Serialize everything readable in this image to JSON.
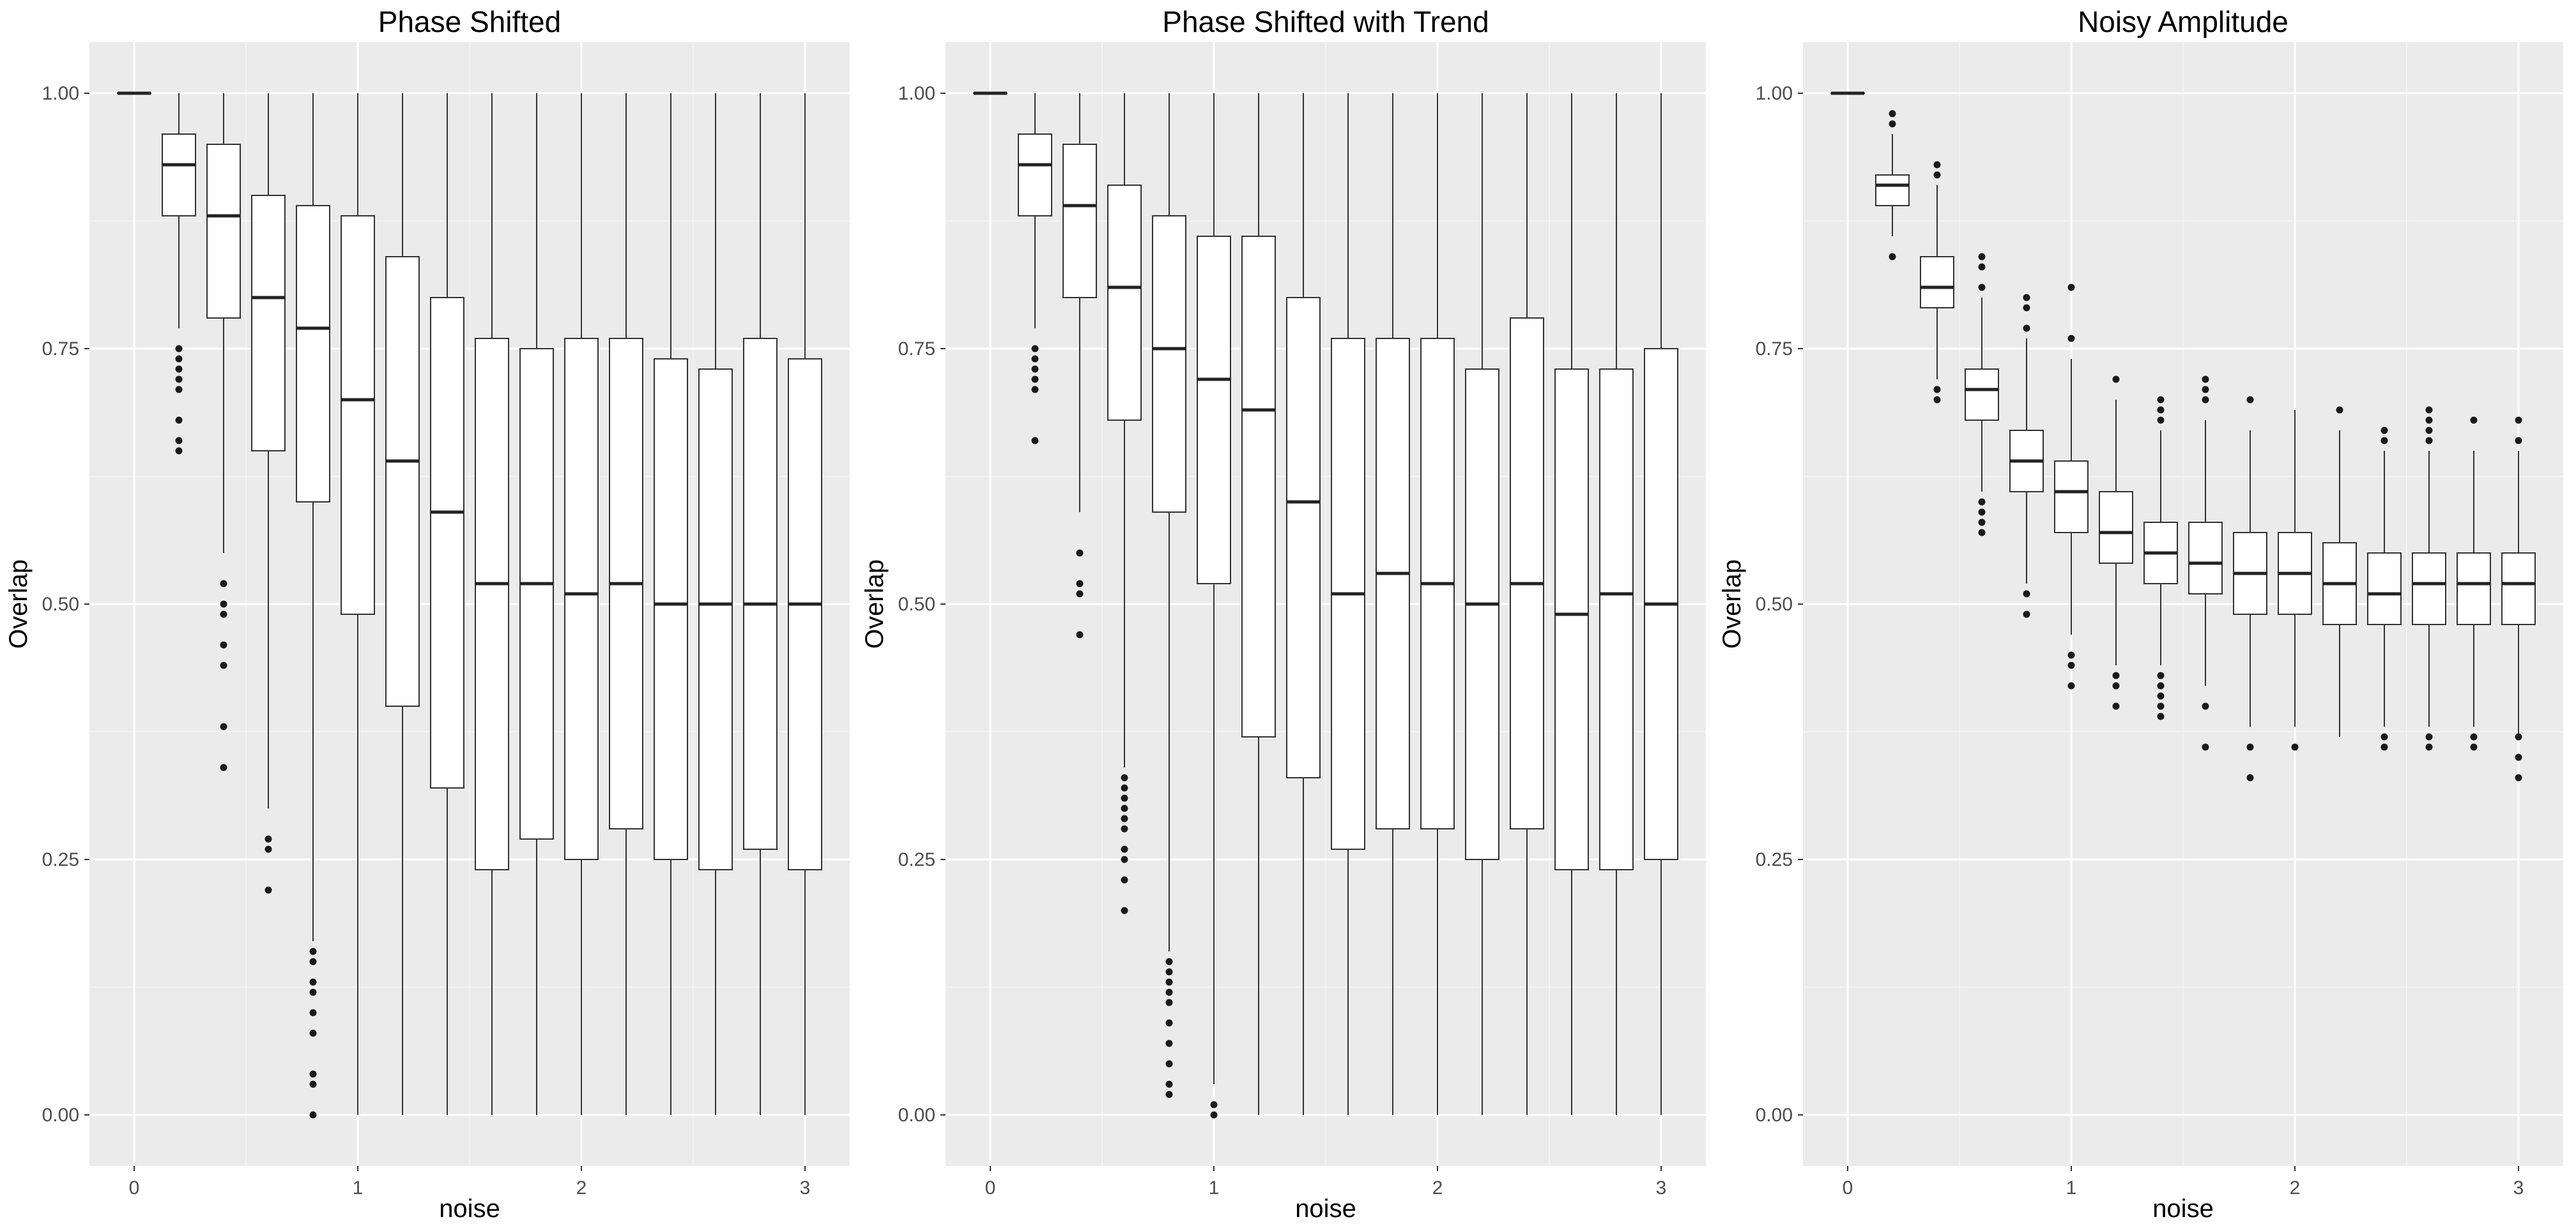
{
  "chart_data": [
    {
      "type": "boxplot",
      "title": "Phase Shifted",
      "xlabel": "noise",
      "ylabel": "Overlap",
      "ylim": [
        -0.05,
        1.05
      ],
      "xlim": [
        -0.2,
        3.2
      ],
      "yticks": [
        0.0,
        0.25,
        0.5,
        0.75,
        1.0
      ],
      "ytick_labels": [
        "0.00",
        "0.25",
        "0.50",
        "0.75",
        "1.00"
      ],
      "xticks": [
        0,
        1,
        2,
        3
      ],
      "xtick_labels": [
        "0",
        "1",
        "2",
        "3"
      ],
      "grid": true,
      "boxes": [
        {
          "x": 0.0,
          "min": 1.0,
          "q1": 1.0,
          "median": 1.0,
          "q3": 1.0,
          "max": 1.0,
          "outliers": []
        },
        {
          "x": 0.2,
          "min": 0.77,
          "q1": 0.88,
          "median": 0.93,
          "q3": 0.96,
          "max": 1.0,
          "outliers": [
            0.65,
            0.66,
            0.68,
            0.71,
            0.72,
            0.73,
            0.74,
            0.75
          ]
        },
        {
          "x": 0.4,
          "min": 0.55,
          "q1": 0.78,
          "median": 0.88,
          "q3": 0.95,
          "max": 1.0,
          "outliers": [
            0.34,
            0.38,
            0.44,
            0.46,
            0.49,
            0.5,
            0.52
          ]
        },
        {
          "x": 0.6,
          "min": 0.3,
          "q1": 0.65,
          "median": 0.8,
          "q3": 0.9,
          "max": 1.0,
          "outliers": [
            0.22,
            0.26,
            0.27
          ]
        },
        {
          "x": 0.8,
          "min": 0.17,
          "q1": 0.6,
          "median": 0.77,
          "q3": 0.89,
          "max": 1.0,
          "outliers": [
            0.0,
            0.03,
            0.04,
            0.08,
            0.1,
            0.12,
            0.13,
            0.15,
            0.16
          ]
        },
        {
          "x": 1.0,
          "min": 0.0,
          "q1": 0.49,
          "median": 0.7,
          "q3": 0.88,
          "max": 1.0,
          "outliers": []
        },
        {
          "x": 1.2,
          "min": 0.0,
          "q1": 0.4,
          "median": 0.64,
          "q3": 0.84,
          "max": 1.0,
          "outliers": []
        },
        {
          "x": 1.4,
          "min": 0.0,
          "q1": 0.32,
          "median": 0.59,
          "q3": 0.8,
          "max": 1.0,
          "outliers": []
        },
        {
          "x": 1.6,
          "min": 0.0,
          "q1": 0.24,
          "median": 0.52,
          "q3": 0.76,
          "max": 1.0,
          "outliers": []
        },
        {
          "x": 1.8,
          "min": 0.0,
          "q1": 0.27,
          "median": 0.52,
          "q3": 0.75,
          "max": 1.0,
          "outliers": []
        },
        {
          "x": 2.0,
          "min": 0.0,
          "q1": 0.25,
          "median": 0.51,
          "q3": 0.76,
          "max": 1.0,
          "outliers": []
        },
        {
          "x": 2.2,
          "min": 0.0,
          "q1": 0.28,
          "median": 0.52,
          "q3": 0.76,
          "max": 1.0,
          "outliers": []
        },
        {
          "x": 2.4,
          "min": 0.0,
          "q1": 0.25,
          "median": 0.5,
          "q3": 0.74,
          "max": 1.0,
          "outliers": []
        },
        {
          "x": 2.6,
          "min": 0.0,
          "q1": 0.24,
          "median": 0.5,
          "q3": 0.73,
          "max": 1.0,
          "outliers": []
        },
        {
          "x": 2.8,
          "min": 0.0,
          "q1": 0.26,
          "median": 0.5,
          "q3": 0.76,
          "max": 1.0,
          "outliers": []
        },
        {
          "x": 3.0,
          "min": 0.0,
          "q1": 0.24,
          "median": 0.5,
          "q3": 0.74,
          "max": 1.0,
          "outliers": []
        }
      ]
    },
    {
      "type": "boxplot",
      "title": "Phase Shifted with Trend",
      "xlabel": "noise",
      "ylabel": "Overlap",
      "ylim": [
        -0.05,
        1.05
      ],
      "xlim": [
        -0.2,
        3.2
      ],
      "yticks": [
        0.0,
        0.25,
        0.5,
        0.75,
        1.0
      ],
      "ytick_labels": [
        "0.00",
        "0.25",
        "0.50",
        "0.75",
        "1.00"
      ],
      "xticks": [
        0,
        1,
        2,
        3
      ],
      "xtick_labels": [
        "0",
        "1",
        "2",
        "3"
      ],
      "grid": true,
      "boxes": [
        {
          "x": 0.0,
          "min": 1.0,
          "q1": 1.0,
          "median": 1.0,
          "q3": 1.0,
          "max": 1.0,
          "outliers": []
        },
        {
          "x": 0.2,
          "min": 0.77,
          "q1": 0.88,
          "median": 0.93,
          "q3": 0.96,
          "max": 1.0,
          "outliers": [
            0.66,
            0.71,
            0.72,
            0.73,
            0.74,
            0.75
          ]
        },
        {
          "x": 0.4,
          "min": 0.59,
          "q1": 0.8,
          "median": 0.89,
          "q3": 0.95,
          "max": 1.0,
          "outliers": [
            0.47,
            0.51,
            0.52,
            0.55
          ]
        },
        {
          "x": 0.6,
          "min": 0.34,
          "q1": 0.68,
          "median": 0.81,
          "q3": 0.91,
          "max": 1.0,
          "outliers": [
            0.2,
            0.23,
            0.25,
            0.26,
            0.28,
            0.29,
            0.3,
            0.31,
            0.32,
            0.33
          ]
        },
        {
          "x": 0.8,
          "min": 0.16,
          "q1": 0.59,
          "median": 0.75,
          "q3": 0.88,
          "max": 1.0,
          "outliers": [
            0.02,
            0.03,
            0.05,
            0.07,
            0.09,
            0.11,
            0.12,
            0.13,
            0.14,
            0.15
          ]
        },
        {
          "x": 1.0,
          "min": 0.03,
          "q1": 0.52,
          "median": 0.72,
          "q3": 0.86,
          "max": 1.0,
          "outliers": [
            0.0,
            0.01
          ]
        },
        {
          "x": 1.2,
          "min": 0.0,
          "q1": 0.37,
          "median": 0.69,
          "q3": 0.86,
          "max": 1.0,
          "outliers": []
        },
        {
          "x": 1.4,
          "min": 0.0,
          "q1": 0.33,
          "median": 0.6,
          "q3": 0.8,
          "max": 1.0,
          "outliers": []
        },
        {
          "x": 1.6,
          "min": 0.0,
          "q1": 0.26,
          "median": 0.51,
          "q3": 0.76,
          "max": 1.0,
          "outliers": []
        },
        {
          "x": 1.8,
          "min": 0.0,
          "q1": 0.28,
          "median": 0.53,
          "q3": 0.76,
          "max": 1.0,
          "outliers": []
        },
        {
          "x": 2.0,
          "min": 0.0,
          "q1": 0.28,
          "median": 0.52,
          "q3": 0.76,
          "max": 1.0,
          "outliers": []
        },
        {
          "x": 2.2,
          "min": 0.0,
          "q1": 0.25,
          "median": 0.5,
          "q3": 0.73,
          "max": 1.0,
          "outliers": []
        },
        {
          "x": 2.4,
          "min": 0.0,
          "q1": 0.28,
          "median": 0.52,
          "q3": 0.78,
          "max": 1.0,
          "outliers": []
        },
        {
          "x": 2.6,
          "min": 0.0,
          "q1": 0.24,
          "median": 0.49,
          "q3": 0.73,
          "max": 1.0,
          "outliers": []
        },
        {
          "x": 2.8,
          "min": 0.0,
          "q1": 0.24,
          "median": 0.51,
          "q3": 0.73,
          "max": 1.0,
          "outliers": []
        },
        {
          "x": 3.0,
          "min": 0.0,
          "q1": 0.25,
          "median": 0.5,
          "q3": 0.75,
          "max": 1.0,
          "outliers": []
        }
      ]
    },
    {
      "type": "boxplot",
      "title": "Noisy Amplitude",
      "xlabel": "noise",
      "ylabel": "Overlap",
      "ylim": [
        -0.05,
        1.05
      ],
      "xlim": [
        -0.2,
        3.2
      ],
      "yticks": [
        0.0,
        0.25,
        0.5,
        0.75,
        1.0
      ],
      "ytick_labels": [
        "0.00",
        "0.25",
        "0.50",
        "0.75",
        "1.00"
      ],
      "xticks": [
        0,
        1,
        2,
        3
      ],
      "xtick_labels": [
        "0",
        "1",
        "2",
        "3"
      ],
      "grid": true,
      "boxes": [
        {
          "x": 0.0,
          "min": 1.0,
          "q1": 1.0,
          "median": 1.0,
          "q3": 1.0,
          "max": 1.0,
          "outliers": []
        },
        {
          "x": 0.2,
          "min": 0.86,
          "q1": 0.89,
          "median": 0.91,
          "q3": 0.92,
          "max": 0.96,
          "outliers": [
            0.84,
            0.97,
            0.98
          ]
        },
        {
          "x": 0.4,
          "min": 0.72,
          "q1": 0.79,
          "median": 0.81,
          "q3": 0.84,
          "max": 0.91,
          "outliers": [
            0.7,
            0.71,
            0.92,
            0.93
          ]
        },
        {
          "x": 0.6,
          "min": 0.61,
          "q1": 0.68,
          "median": 0.71,
          "q3": 0.73,
          "max": 0.8,
          "outliers": [
            0.57,
            0.58,
            0.59,
            0.6,
            0.81,
            0.83,
            0.84
          ]
        },
        {
          "x": 0.8,
          "min": 0.52,
          "q1": 0.61,
          "median": 0.64,
          "q3": 0.67,
          "max": 0.76,
          "outliers": [
            0.49,
            0.51,
            0.77,
            0.79,
            0.8
          ]
        },
        {
          "x": 1.0,
          "min": 0.47,
          "q1": 0.57,
          "median": 0.61,
          "q3": 0.64,
          "max": 0.74,
          "outliers": [
            0.42,
            0.44,
            0.45,
            0.76,
            0.81
          ]
        },
        {
          "x": 1.2,
          "min": 0.44,
          "q1": 0.54,
          "median": 0.57,
          "q3": 0.61,
          "max": 0.7,
          "outliers": [
            0.4,
            0.42,
            0.43,
            0.72
          ]
        },
        {
          "x": 1.4,
          "min": 0.44,
          "q1": 0.52,
          "median": 0.55,
          "q3": 0.58,
          "max": 0.67,
          "outliers": [
            0.39,
            0.4,
            0.41,
            0.42,
            0.43,
            0.68,
            0.69,
            0.7
          ]
        },
        {
          "x": 1.6,
          "min": 0.42,
          "q1": 0.51,
          "median": 0.54,
          "q3": 0.58,
          "max": 0.68,
          "outliers": [
            0.36,
            0.4,
            0.7,
            0.71,
            0.72
          ]
        },
        {
          "x": 1.8,
          "min": 0.38,
          "q1": 0.49,
          "median": 0.53,
          "q3": 0.57,
          "max": 0.67,
          "outliers": [
            0.33,
            0.36,
            0.7
          ]
        },
        {
          "x": 2.0,
          "min": 0.38,
          "q1": 0.49,
          "median": 0.53,
          "q3": 0.57,
          "max": 0.69,
          "outliers": [
            0.36
          ]
        },
        {
          "x": 2.2,
          "min": 0.37,
          "q1": 0.48,
          "median": 0.52,
          "q3": 0.56,
          "max": 0.67,
          "outliers": [
            0.69
          ]
        },
        {
          "x": 2.4,
          "min": 0.38,
          "q1": 0.48,
          "median": 0.51,
          "q3": 0.55,
          "max": 0.65,
          "outliers": [
            0.36,
            0.37,
            0.66,
            0.67
          ]
        },
        {
          "x": 2.6,
          "min": 0.38,
          "q1": 0.48,
          "median": 0.52,
          "q3": 0.55,
          "max": 0.65,
          "outliers": [
            0.36,
            0.37,
            0.66,
            0.67,
            0.68,
            0.69
          ]
        },
        {
          "x": 2.8,
          "min": 0.38,
          "q1": 0.48,
          "median": 0.52,
          "q3": 0.55,
          "max": 0.65,
          "outliers": [
            0.36,
            0.37,
            0.68
          ]
        },
        {
          "x": 3.0,
          "min": 0.37,
          "q1": 0.48,
          "median": 0.52,
          "q3": 0.55,
          "max": 0.65,
          "outliers": [
            0.33,
            0.35,
            0.37,
            0.66,
            0.68
          ]
        }
      ]
    }
  ]
}
